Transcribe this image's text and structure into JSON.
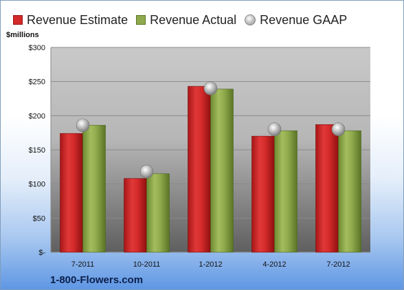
{
  "chart_data": {
    "type": "bar",
    "categories": [
      "7-2011",
      "10-2011",
      "1-2012",
      "4-2012",
      "7-2012"
    ],
    "series": [
      {
        "name": "Revenue Estimate",
        "values": [
          174,
          108,
          243,
          170,
          187
        ],
        "color": "#d42a2a"
      },
      {
        "name": "Revenue Actual",
        "values": [
          186,
          115,
          239,
          178,
          178
        ],
        "color": "#8faa4c"
      },
      {
        "name": "Revenue GAAP",
        "values": [
          186,
          118,
          240,
          180,
          180
        ],
        "color": "#b8b8b8",
        "marker": "circle"
      }
    ],
    "ylabel": "$millions",
    "ylim": [
      0,
      300
    ],
    "yticks": [
      0,
      50,
      100,
      150,
      200,
      250,
      300
    ],
    "ytick_labels": [
      "$-",
      "$50",
      "$100",
      "$150",
      "$200",
      "$250",
      "$300"
    ],
    "grid": true,
    "legend_position": "top"
  },
  "footer_text": "1-800-Flowers.com"
}
